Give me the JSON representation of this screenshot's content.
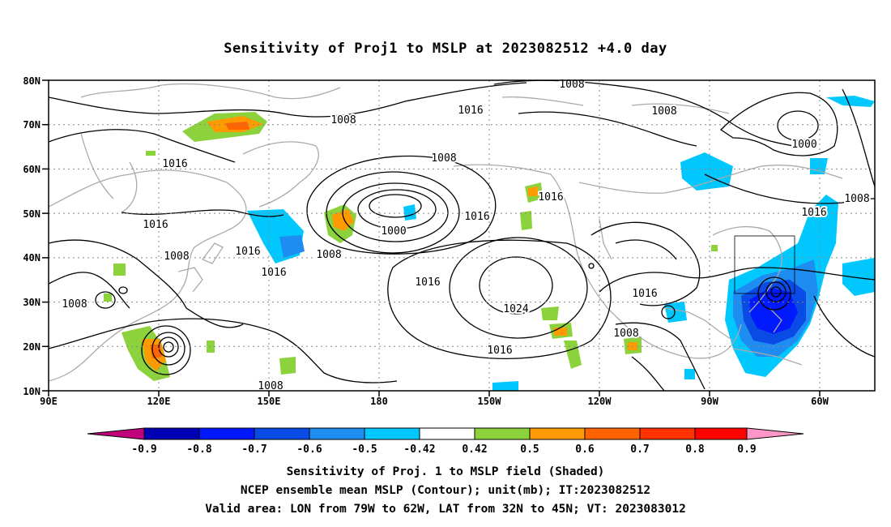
{
  "title": "Sensitivity of Proj1 to MSLP at 2023082512 +4.0 day",
  "axes": {
    "lat_labels": [
      "80N",
      "70N",
      "60N",
      "50N",
      "40N",
      "30N",
      "20N",
      "10N"
    ],
    "lon_labels": [
      "90E",
      "120E",
      "150E",
      "180",
      "150W",
      "120W",
      "90W",
      "60W"
    ]
  },
  "contour_labels": [
    "1008",
    "1016",
    "1008",
    "1008",
    "1000",
    "1016",
    "1016",
    "1016",
    "1008",
    "1016",
    "1008",
    "1008",
    "1016",
    "1016",
    "1024",
    "1016",
    "1016",
    "1008",
    "1016",
    "1008",
    "1008",
    "1000",
    "1008",
    "1016"
  ],
  "colorbar": {
    "tick_labels": [
      "-0.9",
      "-0.8",
      "-0.7",
      "-0.6",
      "-0.5",
      "-0.42",
      "0.42",
      "0.5",
      "0.6",
      "0.7",
      "0.8",
      "0.9"
    ],
    "colors": [
      "#c0007a",
      "#0000b4",
      "#0019ff",
      "#0a4be6",
      "#1e8cf0",
      "#00c8ff",
      "#ffffff",
      "#8cd23c",
      "#ff9b00",
      "#ff6400",
      "#ff3200",
      "#ff0000",
      "#ff96c8"
    ]
  },
  "captions": {
    "line1": "Sensitivity of Proj. 1 to MSLP field (Shaded)",
    "line2": "NCEP ensemble mean MSLP (Contour); unit(mb); IT:2023082512",
    "line3": "Valid area: LON from 79W to 62W, LAT from 32N to 45N; VT: 2023083012"
  }
}
